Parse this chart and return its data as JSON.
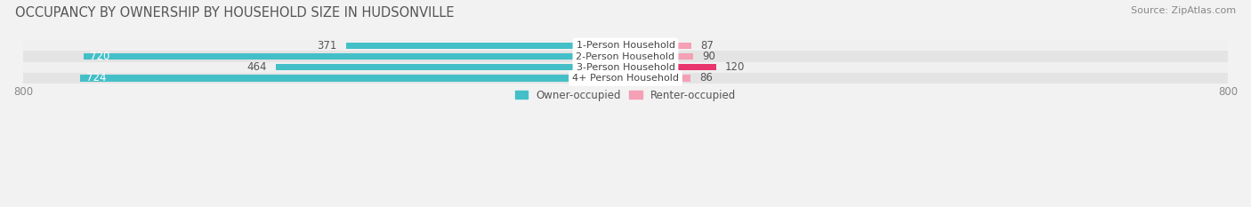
{
  "title": "OCCUPANCY BY OWNERSHIP BY HOUSEHOLD SIZE IN HUDSONVILLE",
  "source": "Source: ZipAtlas.com",
  "categories": [
    "1-Person Household",
    "2-Person Household",
    "3-Person Household",
    "4+ Person Household"
  ],
  "owner_values": [
    371,
    720,
    464,
    724
  ],
  "renter_values": [
    87,
    90,
    120,
    86
  ],
  "owner_color": "#44bfc8",
  "renter_colors": [
    "#f4a0b5",
    "#f4a0b5",
    "#e8356d",
    "#f4a0b5"
  ],
  "row_bg_colors": [
    "#f0f0f0",
    "#e4e4e4",
    "#f0f0f0",
    "#e4e4e4"
  ],
  "label_bg_color": "#ffffff",
  "axis_max": 800,
  "axis_min": -800,
  "x_tick_labels": [
    "800",
    "800"
  ],
  "title_fontsize": 10.5,
  "source_fontsize": 8,
  "bar_label_fontsize": 8.5,
  "cat_label_fontsize": 8,
  "legend_fontsize": 8.5,
  "tick_fontsize": 8.5,
  "owner_label_inside_color": "#ffffff",
  "owner_label_outside_color": "#555555",
  "renter_label_color": "#555555",
  "inside_threshold": 500
}
